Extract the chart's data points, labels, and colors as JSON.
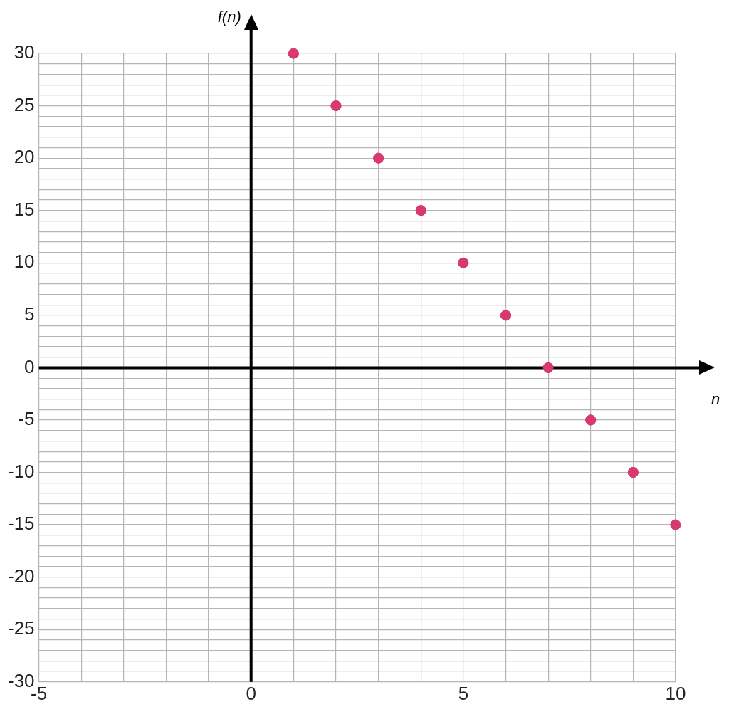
{
  "chart_data": {
    "type": "scatter",
    "xlabel": "n",
    "ylabel": "f(n)",
    "marker": "circle",
    "grid": true,
    "legend": false,
    "x": [
      1,
      2,
      3,
      4,
      5,
      6,
      7,
      8,
      9,
      10
    ],
    "series": [
      {
        "color": "#d63a6e",
        "values": [
          30,
          25,
          20,
          15,
          10,
          5,
          0,
          -5,
          -10,
          -15
        ]
      }
    ],
    "xlim": [
      -5,
      10
    ],
    "xticks": [
      -5,
      {
        "value": -4,
        "label": null
      },
      {
        "value": -3,
        "label": null
      },
      {
        "value": -2,
        "label": null
      },
      {
        "value": -1,
        "label": null
      },
      0,
      {
        "value": 1,
        "label": null
      },
      {
        "value": 2,
        "label": null
      },
      {
        "value": 3,
        "label": null
      },
      {
        "value": 4,
        "label": null
      },
      5,
      {
        "value": 6,
        "label": null
      },
      {
        "value": 7,
        "label": null
      },
      {
        "value": 8,
        "label": null
      },
      {
        "value": 9,
        "label": null
      },
      10
    ],
    "ylim": [
      -30,
      30
    ],
    "yticks": [
      -30,
      {
        "value": -29,
        "label": null
      },
      {
        "value": -28,
        "label": null
      },
      {
        "value": -27,
        "label": null
      },
      {
        "value": -26,
        "label": null
      },
      -25,
      {
        "value": -24,
        "label": null
      },
      {
        "value": -23,
        "label": null
      },
      {
        "value": -22,
        "label": null
      },
      {
        "value": -21,
        "label": null
      },
      -20,
      {
        "value": -19,
        "label": null
      },
      {
        "value": -18,
        "label": null
      },
      {
        "value": -17,
        "label": null
      },
      {
        "value": -16,
        "label": null
      },
      -15,
      {
        "value": -14,
        "label": null
      },
      {
        "value": -13,
        "label": null
      },
      {
        "value": -12,
        "label": null
      },
      {
        "value": -11,
        "label": null
      },
      -10,
      {
        "value": -9,
        "label": null
      },
      {
        "value": -8,
        "label": null
      },
      {
        "value": -7,
        "label": null
      },
      {
        "value": -6,
        "label": null
      },
      -5,
      {
        "value": -4,
        "label": null
      },
      {
        "value": -3,
        "label": null
      },
      {
        "value": -2,
        "label": null
      },
      {
        "value": -1,
        "label": null
      },
      0,
      {
        "value": 1,
        "label": null
      },
      {
        "value": 2,
        "label": null
      },
      {
        "value": 3,
        "label": null
      },
      {
        "value": 4,
        "label": null
      },
      5,
      {
        "value": 6,
        "label": null
      },
      {
        "value": 7,
        "label": null
      },
      {
        "value": 8,
        "label": null
      },
      {
        "value": 9,
        "label": null
      },
      10,
      {
        "value": 11,
        "label": null
      },
      {
        "value": 12,
        "label": null
      },
      {
        "value": 13,
        "label": null
      },
      {
        "value": 14,
        "label": null
      },
      15,
      {
        "value": 16,
        "label": null
      },
      {
        "value": 17,
        "label": null
      },
      {
        "value": 18,
        "label": null
      },
      {
        "value": 19,
        "label": null
      },
      20,
      {
        "value": 21,
        "label": null
      },
      {
        "value": 22,
        "label": null
      },
      {
        "value": 23,
        "label": null
      },
      {
        "value": 24,
        "label": null
      },
      25,
      {
        "value": 26,
        "label": null
      },
      {
        "value": 27,
        "label": null
      },
      {
        "value": 28,
        "label": null
      },
      {
        "value": 29,
        "label": null
      },
      30
    ]
  }
}
